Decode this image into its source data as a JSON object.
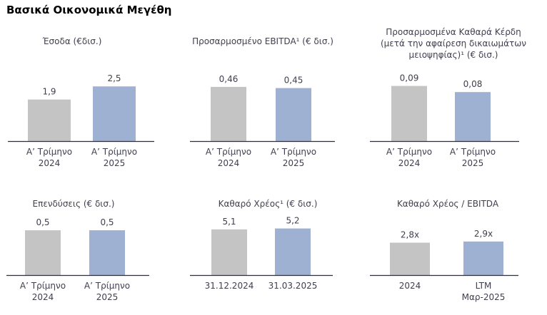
{
  "page": {
    "title": "Βασικά Οικονομικά Μεγέθη"
  },
  "colors": {
    "bar_prior": "#c4c4c4",
    "bar_current": "#9fb1d3",
    "axis": "#2f2f3a",
    "text": "#3f3f4e"
  },
  "chart_data": [
    {
      "type": "bar",
      "title_lines": [
        "Έσοδα (€δισ.)"
      ],
      "categories": [
        [
          "Α’ Τρίμηνο",
          "2024"
        ],
        [
          "Α’ Τρίμηνο",
          "2025"
        ]
      ],
      "values": [
        1.9,
        2.5
      ],
      "value_labels": [
        "1,9",
        "2,5"
      ],
      "ylim": [
        0,
        2.8
      ]
    },
    {
      "type": "bar",
      "title_lines": [
        "Προσαρμοσμένο EBITDA¹ (€ δισ.)"
      ],
      "categories": [
        [
          "Α’ Τρίμηνο",
          "2024"
        ],
        [
          "Α’ Τρίμηνο",
          "2025"
        ]
      ],
      "values": [
        0.46,
        0.45
      ],
      "value_labels": [
        "0,46",
        "0,45"
      ],
      "ylim": [
        0,
        0.52
      ]
    },
    {
      "type": "bar",
      "title_lines": [
        "Προσαρμοσμένα Καθαρά Κέρδη",
        "(μετά την αφαίρεση δικαιωμάτων",
        "μειοψηφίας)¹ (€ δισ.)"
      ],
      "categories": [
        [
          "Α’ Τρίμηνο",
          "2024"
        ],
        [
          "Α’ Τρίμηνο",
          "2025"
        ]
      ],
      "values": [
        0.09,
        0.08
      ],
      "value_labels": [
        "0,09",
        "0,08"
      ],
      "ylim": [
        0,
        0.1
      ]
    },
    {
      "type": "bar",
      "title_lines": [
        "Επενδύσεις (€ δισ.)"
      ],
      "categories": [
        [
          "Α’ Τρίμηνο",
          "2024"
        ],
        [
          "Α’ Τρίμηνο",
          "2025"
        ]
      ],
      "values": [
        0.5,
        0.5
      ],
      "value_labels": [
        "0,5",
        "0,5"
      ],
      "ylim": [
        0,
        0.62
      ]
    },
    {
      "type": "bar",
      "title_lines": [
        "Καθαρό Χρέος¹ (€ δισ.)"
      ],
      "categories": [
        [
          "31.12.2024"
        ],
        [
          "31.03.2025"
        ]
      ],
      "values": [
        5.1,
        5.2
      ],
      "value_labels": [
        "5,1",
        "5,2"
      ],
      "ylim": [
        0,
        6.2
      ]
    },
    {
      "type": "bar",
      "title_lines": [
        "Καθαρό Χρέος / EBITDA"
      ],
      "categories": [
        [
          "2024"
        ],
        [
          "LTM",
          "Μαρ-2025"
        ]
      ],
      "values": [
        2.8,
        2.9
      ],
      "value_labels": [
        "2,8x",
        "2,9x"
      ],
      "ylim": [
        0,
        4.8
      ]
    }
  ]
}
